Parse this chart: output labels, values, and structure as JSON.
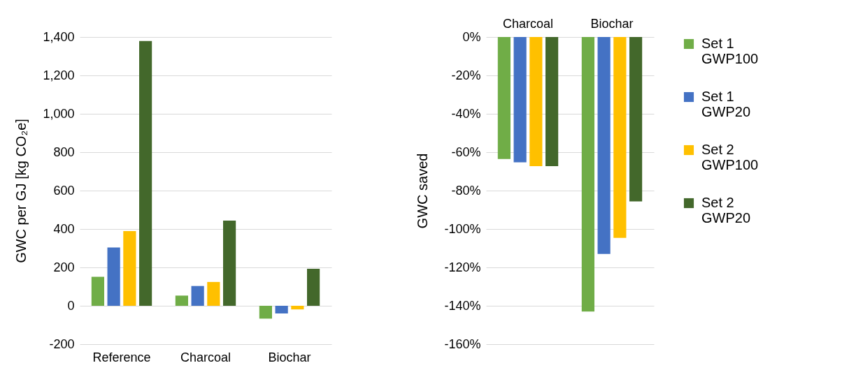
{
  "chart_data": [
    {
      "type": "bar",
      "ylabel": "GWC per GJ [kg CO₂e]",
      "categories": [
        "Reference",
        "Charcoal",
        "Biochar"
      ],
      "series": [
        {
          "color": "#70ad47",
          "values": [
            151,
            53,
            -67
          ]
        },
        {
          "color": "#4472c4",
          "values": [
            304,
            103,
            -40
          ]
        },
        {
          "color": "#ffc000",
          "values": [
            389,
            124,
            -19
          ]
        },
        {
          "color": "#43682b",
          "values": [
            1379,
            444,
            193
          ]
        }
      ],
      "ylim": [
        -200,
        1400
      ],
      "yticks": [
        -200,
        0,
        200,
        400,
        600,
        800,
        {
          "value": 1000,
          "label": "1,000"
        },
        {
          "value": 1200,
          "label": "1,200"
        },
        {
          "value": 1400,
          "label": "1,400"
        }
      ],
      "grid": "y",
      "legend": false
    },
    {
      "type": "bar",
      "ylabel": "GWC saved",
      "categories": [
        "Charcoal",
        "Biochar"
      ],
      "series": [
        {
          "name": "Set 1 GWP100",
          "color": "#70ad47",
          "values": [
            -63.5,
            -143
          ]
        },
        {
          "name": "Set 1 GWP20",
          "color": "#4472c4",
          "values": [
            -65.3,
            -113
          ]
        },
        {
          "name": "Set 2 GWP100",
          "color": "#ffc000",
          "values": [
            -67.3,
            -104.6
          ]
        },
        {
          "name": "Set 2 GWP20",
          "color": "#43682b",
          "values": [
            -67.3,
            -85.6
          ]
        }
      ],
      "ylim": [
        -160,
        0
      ],
      "yticks": [
        {
          "value": -160,
          "label": "-160%"
        },
        {
          "value": -140,
          "label": "-140%"
        },
        {
          "value": -120,
          "label": "-120%"
        },
        {
          "value": -100,
          "label": "-100%"
        },
        {
          "value": -80,
          "label": "-80%"
        },
        {
          "value": -60,
          "label": "-60%"
        },
        {
          "value": -40,
          "label": "-40%"
        },
        {
          "value": -20,
          "label": "-20%"
        },
        {
          "value": 0,
          "label": "0%"
        }
      ],
      "grid": "y",
      "legend": "right"
    }
  ]
}
